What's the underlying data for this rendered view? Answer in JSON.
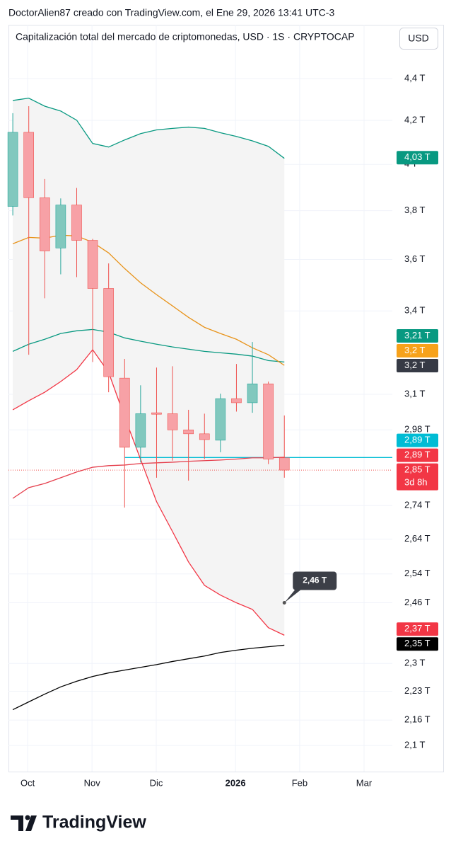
{
  "chart_data": {
    "type": "candlestick",
    "credit": "DoctorAlien87 creado con TradingView.com, el Ene 29, 2026 13:41 UTC-3",
    "title": "Capitalización total del mercado de criptomonedas, USD · 1S · CRYPTOCAP",
    "currency_button": "USD",
    "logo": "TradingView",
    "log_scale": true,
    "grid": true,
    "ylim": [
      2.04,
      4.67
    ],
    "yticks": [
      {
        "value": 4.4,
        "label": "4,4 T"
      },
      {
        "value": 4.2,
        "label": "4,2 T"
      },
      {
        "value": 4,
        "label": "4 T"
      },
      {
        "value": 3.8,
        "label": "3,8 T"
      },
      {
        "value": 3.6,
        "label": "3,6 T"
      },
      {
        "value": 3.4,
        "label": "3,4 T"
      },
      {
        "value": 3.1,
        "label": "3,1 T"
      },
      {
        "value": 2.98,
        "label": "2,98 T"
      },
      {
        "value": 2.74,
        "label": "2,74 T"
      },
      {
        "value": 2.64,
        "label": "2,64 T"
      },
      {
        "value": 2.54,
        "label": "2,54 T"
      },
      {
        "value": 2.46,
        "label": "2,46 T"
      },
      {
        "value": 2.3,
        "label": "2,3 T"
      },
      {
        "value": 2.23,
        "label": "2,23 T"
      },
      {
        "value": 2.16,
        "label": "2,16 T"
      },
      {
        "value": 2.1,
        "label": "2,1 T"
      }
    ],
    "xlim": [
      -0.27,
      23.76
    ],
    "xticks": [
      {
        "value": 0.93,
        "label": "Oct"
      },
      {
        "value": 4.96,
        "label": "Nov"
      },
      {
        "value": 8.98,
        "label": "Dic"
      },
      {
        "value": 13.94,
        "label": "2026",
        "bold": true
      },
      {
        "value": 17.96,
        "label": "Feb"
      },
      {
        "value": 21.99,
        "label": "Mar"
      }
    ],
    "categories": [
      null,
      null,
      null,
      null,
      null,
      null,
      null,
      null,
      null,
      null,
      null,
      null,
      null,
      null,
      null,
      null,
      null,
      null
    ],
    "open": [
      3.818,
      4.145,
      3.855,
      3.646,
      3.824,
      3.677,
      3.486,
      3.156,
      2.923,
      3.037,
      3.034,
      2.98,
      2.967,
      2.946,
      3.085,
      3.071,
      3.136,
      2.889
    ],
    "high": [
      4.234,
      4.267,
      3.936,
      3.852,
      3.897,
      3.683,
      3.584,
      3.224,
      3.131,
      3.193,
      3.198,
      3.047,
      3.034,
      3.102,
      3.206,
      3.285,
      3.144,
      3.028
    ],
    "low": [
      3.78,
      3.239,
      3.448,
      3.541,
      3.53,
      3.213,
      3.107,
      2.734,
      2.874,
      2.826,
      2.88,
      2.817,
      2.885,
      2.907,
      3.041,
      3.037,
      2.869,
      2.826
    ],
    "close": [
      4.145,
      3.855,
      3.634,
      3.824,
      3.677,
      3.486,
      3.161,
      2.923,
      3.034,
      3.032,
      2.98,
      2.967,
      2.948,
      3.085,
      3.071,
      3.136,
      2.885,
      2.85
    ],
    "up_color": "#81c8be",
    "up_border": "#26a69a",
    "down_color": "#f7a1a6",
    "down_border": "#ef5350",
    "band_fill": "#f4f4f4",
    "series": [
      {
        "color": "#089981",
        "values": [
          4.294,
          4.305,
          4.267,
          4.244,
          4.201,
          4.094,
          4.078,
          4.11,
          4.139,
          4.156,
          4.163,
          4.169,
          4.163,
          4.143,
          4.126,
          4.106,
          4.081,
          4.027
        ]
      },
      {
        "color": "#089981",
        "values": [
          3.251,
          3.277,
          3.295,
          3.316,
          3.326,
          3.331,
          3.321,
          3.3,
          3.288,
          3.277,
          3.267,
          3.259,
          3.251,
          3.246,
          3.241,
          3.234,
          3.218,
          3.213
        ]
      },
      {
        "color": "#f23645",
        "values": [
          3.047,
          3.078,
          3.107,
          3.144,
          3.186,
          3.257,
          3.176,
          3.023,
          2.884,
          2.752,
          2.662,
          2.574,
          2.508,
          2.481,
          2.46,
          2.442,
          2.393,
          2.373
        ]
      },
      {
        "color": "#e8931a",
        "values": [
          3.663,
          3.689,
          3.686,
          3.698,
          3.695,
          3.669,
          3.626,
          3.564,
          3.508,
          3.462,
          3.419,
          3.376,
          3.339,
          3.316,
          3.295,
          3.264,
          3.239,
          3.201
        ]
      },
      {
        "color": "#e53e4c",
        "values": [
          2.762,
          2.795,
          2.808,
          2.826,
          2.844,
          2.859,
          2.864,
          2.866,
          2.871,
          2.873,
          2.875,
          2.878,
          2.88,
          2.882,
          2.885,
          2.889,
          2.889,
          2.891
        ]
      },
      {
        "color": "#000000",
        "values": [
          2.185,
          2.204,
          2.223,
          2.241,
          2.255,
          2.267,
          2.276,
          2.283,
          2.29,
          2.297,
          2.305,
          2.312,
          2.319,
          2.328,
          2.334,
          2.339,
          2.343,
          2.347
        ]
      }
    ],
    "hline": {
      "value": 2.89,
      "color": "#00bcd4",
      "start": 7
    },
    "price_labels": [
      {
        "value": 4.03,
        "label": "4,03 T",
        "color": "#089981"
      },
      {
        "value": 3.21,
        "label": "3,21 T",
        "color": "#089981"
      },
      {
        "value": 3.2,
        "label": "3,2 T",
        "color": "#f7a21b"
      },
      {
        "value": 3.2,
        "label": "3,2 T",
        "color": "#363a45"
      },
      {
        "value": 2.89,
        "label": "2,89 T",
        "color": "#00bcd4"
      },
      {
        "value": 2.89,
        "label": "2,89 T",
        "color": "#f23645"
      },
      {
        "value": 2.85,
        "label": "2,85 T",
        "color": "#f23645",
        "countdown": "3d 8h"
      },
      {
        "value": 2.37,
        "label": "2,37 T",
        "color": "#f23645"
      },
      {
        "value": 2.35,
        "label": "2,35 T",
        "color": "#000000"
      }
    ],
    "note": {
      "value": 2.46,
      "label": "2,46 T",
      "x": 17
    }
  }
}
